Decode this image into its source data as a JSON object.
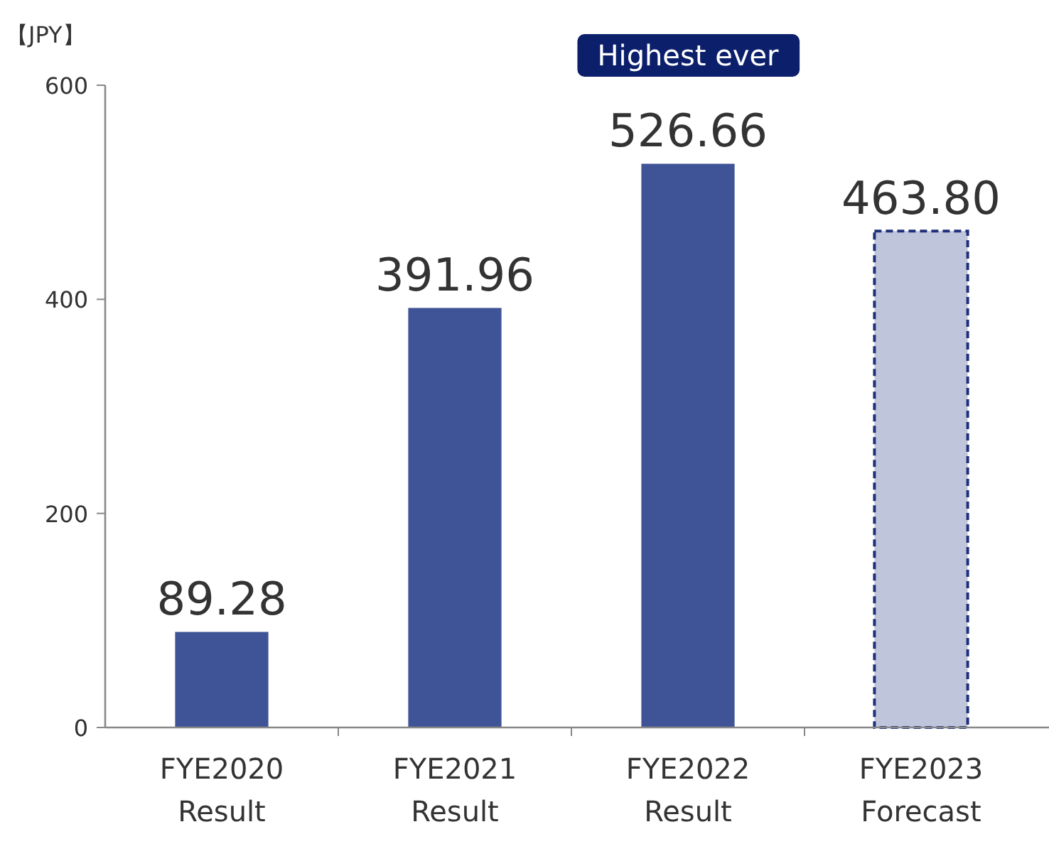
{
  "chart_data": {
    "type": "bar",
    "ylabel": "【JPY】",
    "categories": [
      "FYE2020\nResult",
      "FYE2021\nResult",
      "FYE2022\nResult",
      "FYE2023\nForecast"
    ],
    "series": [
      {
        "color": "#3f5496",
        "values": [
          89.28,
          391.96,
          526.66,
          null
        ]
      },
      {
        "color": "#bfc6dc",
        "values": [
          null,
          null,
          null,
          463.8
        ],
        "value_labels": [
          null,
          null,
          null,
          "463.80"
        ],
        "line_style": "dashed"
      }
    ],
    "ylim": [
      0,
      600
    ],
    "yticks": [
      0,
      200,
      400,
      600
    ],
    "data_labels": true,
    "grid": false,
    "annotations": [
      "Highest ever"
    ]
  }
}
